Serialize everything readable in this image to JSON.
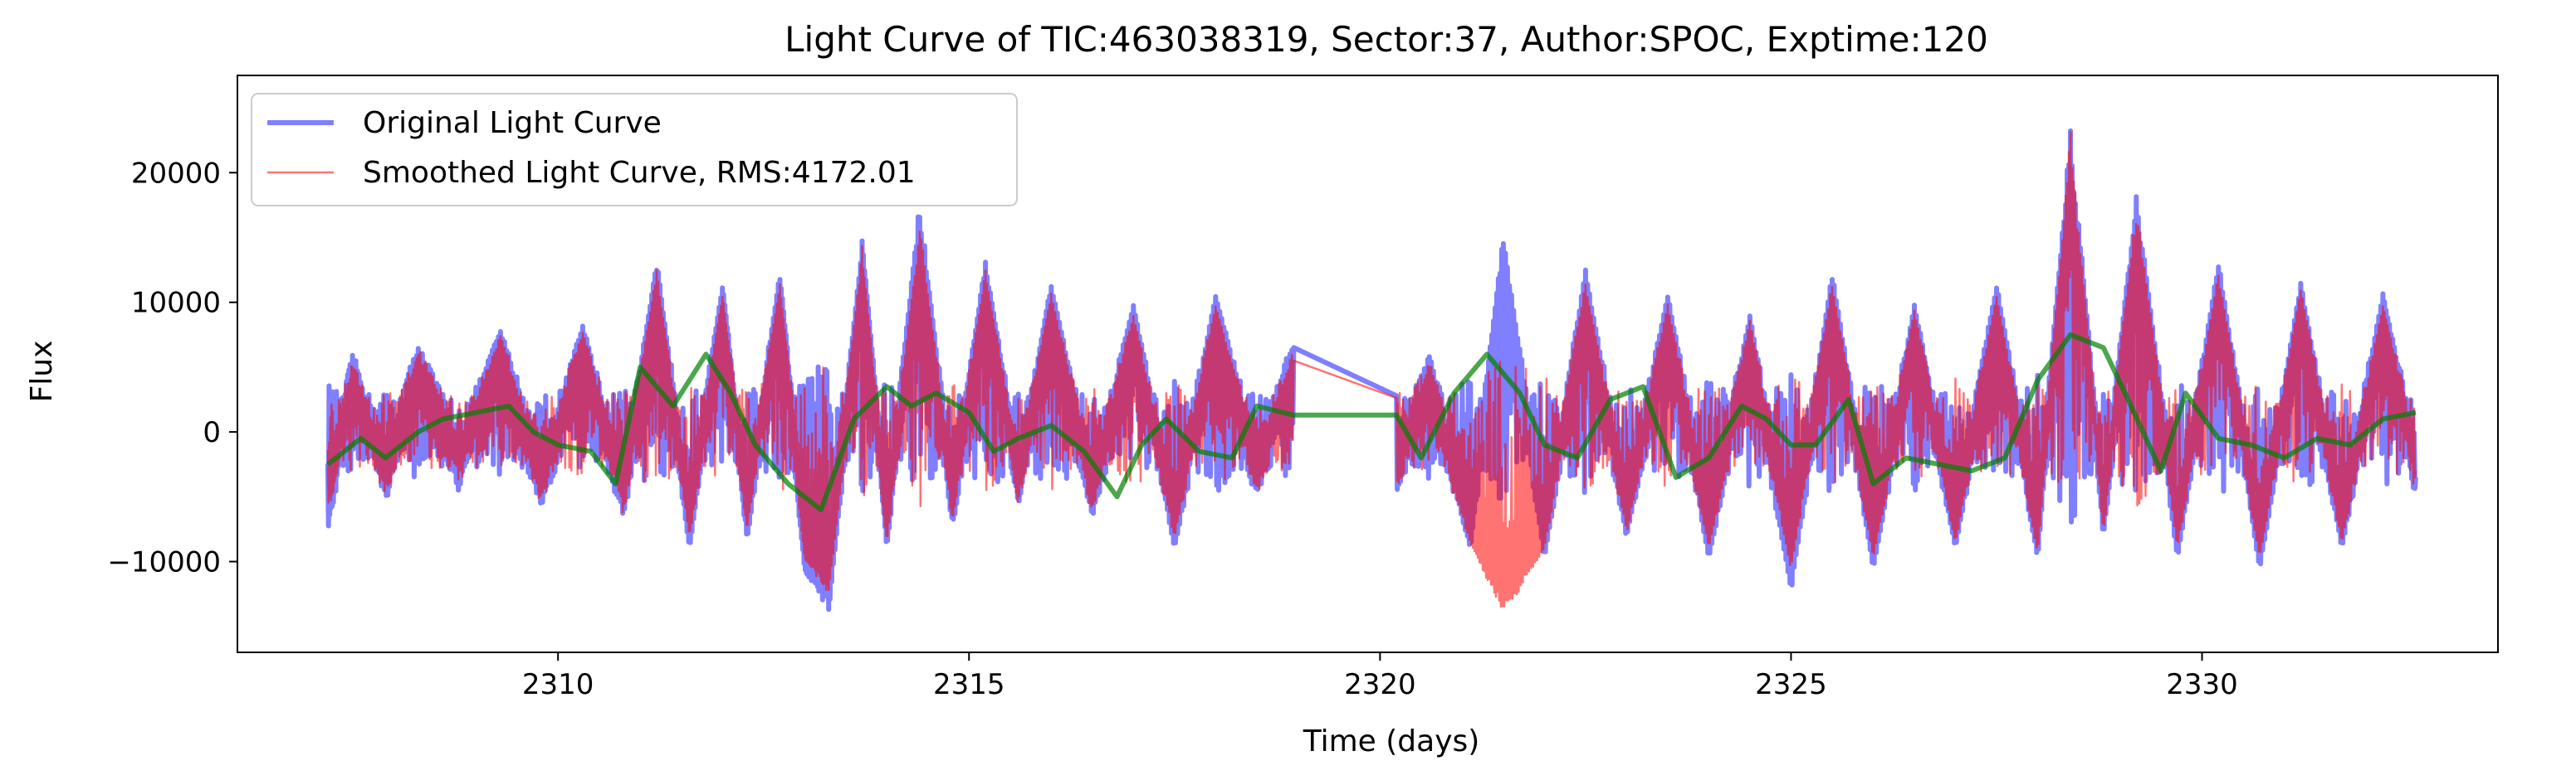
{
  "chart_data": {
    "type": "line",
    "title": "Light Curve of TIC:463038319, Sector:37, Author:SPOC, Exptime:120",
    "xlabel": "Time (days)",
    "ylabel": "Flux",
    "xlim": [
      2306.1,
      2333.6
    ],
    "ylim": [
      -17000,
      27500
    ],
    "xticks": [
      2310,
      2315,
      2320,
      2325,
      2330
    ],
    "xtick_labels": [
      "2310",
      "2315",
      "2320",
      "2325",
      "2330"
    ],
    "yticks": [
      -10000,
      0,
      10000,
      20000
    ],
    "ytick_labels": [
      "−10000",
      "0",
      "10000",
      "20000"
    ],
    "grid": false,
    "legend_position": "top-left",
    "data_gap": [
      2318.95,
      2320.2
    ],
    "series": [
      {
        "name": "Original Light Curve",
        "color": "#0000ff",
        "alpha": 0.5,
        "style": "thick",
        "x": [
          2307.2,
          2307.5,
          2307.9,
          2308.3,
          2308.8,
          2309.3,
          2309.8,
          2310.3,
          2310.8,
          2311.2,
          2311.6,
          2312.0,
          2312.3,
          2312.7,
          2313.0,
          2313.3,
          2313.7,
          2314.0,
          2314.4,
          2314.8,
          2315.2,
          2315.6,
          2316.0,
          2316.5,
          2317.0,
          2317.5,
          2318.0,
          2318.5,
          2318.95,
          2320.2,
          2320.6,
          2321.1,
          2321.5,
          2322.0,
          2322.5,
          2323.0,
          2323.5,
          2324.0,
          2324.5,
          2325.0,
          2325.5,
          2326.0,
          2326.5,
          2327.0,
          2327.5,
          2328.0,
          2328.4,
          2328.8,
          2329.2,
          2329.7,
          2330.2,
          2330.7,
          2331.2,
          2331.7,
          2332.2,
          2332.6
        ],
        "values": [
          -7000,
          5000,
          -4000,
          6000,
          -3000,
          7500,
          -5000,
          8000,
          -6000,
          14000,
          -9000,
          12000,
          -8000,
          13000,
          -11000,
          -14500,
          16000,
          -9000,
          19000,
          -7000,
          14000,
          -5000,
          12000,
          -6000,
          10000,
          -9000,
          11000,
          -4000,
          6500,
          -3000,
          5000,
          -9000,
          16000,
          -10000,
          13000,
          -8000,
          11000,
          -10000,
          9000,
          -13000,
          13000,
          -11000,
          10000,
          -9000,
          12000,
          -10000,
          26000,
          -8000,
          20000,
          -10000,
          14000,
          -11000,
          12000,
          -9000,
          11000,
          -3500
        ]
      },
      {
        "name": "Smoothed Light Curve, RMS:4172.01",
        "color": "#ff0000",
        "alpha": 0.55,
        "style": "thin",
        "x": [
          2307.2,
          2307.5,
          2307.9,
          2308.3,
          2308.8,
          2309.3,
          2309.8,
          2310.3,
          2310.8,
          2311.2,
          2311.6,
          2312.0,
          2312.3,
          2312.7,
          2313.0,
          2313.3,
          2313.7,
          2314.0,
          2314.4,
          2314.8,
          2315.2,
          2315.6,
          2316.0,
          2316.5,
          2317.0,
          2317.5,
          2318.0,
          2318.5,
          2318.95,
          2320.2,
          2320.6,
          2321.1,
          2321.5,
          2322.0,
          2322.5,
          2323.0,
          2323.5,
          2324.0,
          2324.5,
          2325.0,
          2325.5,
          2326.0,
          2326.5,
          2327.0,
          2327.5,
          2328.0,
          2328.4,
          2328.8,
          2329.2,
          2329.7,
          2330.2,
          2330.7,
          2331.2,
          2331.7,
          2332.2,
          2332.6
        ],
        "values": [
          -5000,
          4500,
          -3500,
          5500,
          -2500,
          7000,
          -4500,
          7500,
          -5500,
          13000,
          -8000,
          11000,
          -7000,
          12000,
          -10000,
          -13000,
          15000,
          -8500,
          17000,
          -6500,
          13000,
          -4500,
          11000,
          -5500,
          9000,
          -8000,
          10000,
          -3500,
          5500,
          -2800,
          4500,
          -8500,
          -15000,
          -9000,
          12000,
          -7500,
          10000,
          -9000,
          8500,
          -11000,
          12000,
          -10000,
          9500,
          -8500,
          11000,
          -9500,
          25000,
          -7500,
          19000,
          -9000,
          13000,
          -10000,
          11500,
          -8500,
          10000,
          -3000
        ]
      },
      {
        "name": "",
        "color": "#008000",
        "alpha": 0.7,
        "style": "trend",
        "x": [
          2307.2,
          2307.6,
          2307.9,
          2308.3,
          2308.6,
          2309.0,
          2309.4,
          2309.7,
          2310.0,
          2310.4,
          2310.7,
          2311.0,
          2311.4,
          2311.8,
          2312.1,
          2312.4,
          2312.8,
          2313.2,
          2313.6,
          2314.0,
          2314.3,
          2314.6,
          2315.0,
          2315.3,
          2315.6,
          2316.0,
          2316.4,
          2316.8,
          2317.1,
          2317.4,
          2317.8,
          2318.2,
          2318.5,
          2318.95,
          2320.2,
          2320.5,
          2320.9,
          2321.3,
          2321.7,
          2322.0,
          2322.4,
          2322.8,
          2323.2,
          2323.6,
          2324.0,
          2324.4,
          2324.7,
          2325.0,
          2325.3,
          2325.7,
          2326.0,
          2326.4,
          2326.8,
          2327.2,
          2327.6,
          2328.0,
          2328.4,
          2328.8,
          2329.1,
          2329.5,
          2329.8,
          2330.2,
          2330.6,
          2331.0,
          2331.4,
          2331.8,
          2332.2,
          2332.6
        ],
        "values": [
          -2500,
          -500,
          -2000,
          0,
          1000,
          1500,
          2000,
          0,
          -1000,
          -1500,
          -4000,
          5000,
          2000,
          6000,
          3000,
          -1000,
          -4000,
          -6000,
          1000,
          3500,
          2000,
          3000,
          1500,
          -1500,
          -500,
          500,
          -1500,
          -5000,
          -1000,
          1000,
          -1500,
          -2000,
          2000,
          1300,
          1300,
          -2000,
          3000,
          6000,
          3000,
          -1000,
          -2000,
          2500,
          3500,
          -3500,
          -2000,
          2000,
          1000,
          -1000,
          -1000,
          2500,
          -4000,
          -2000,
          -2500,
          -3000,
          -2000,
          4000,
          7500,
          6500,
          2500,
          -3000,
          3000,
          -500,
          -1000,
          -2000,
          -500,
          -1000,
          1000,
          1500
        ]
      }
    ]
  }
}
